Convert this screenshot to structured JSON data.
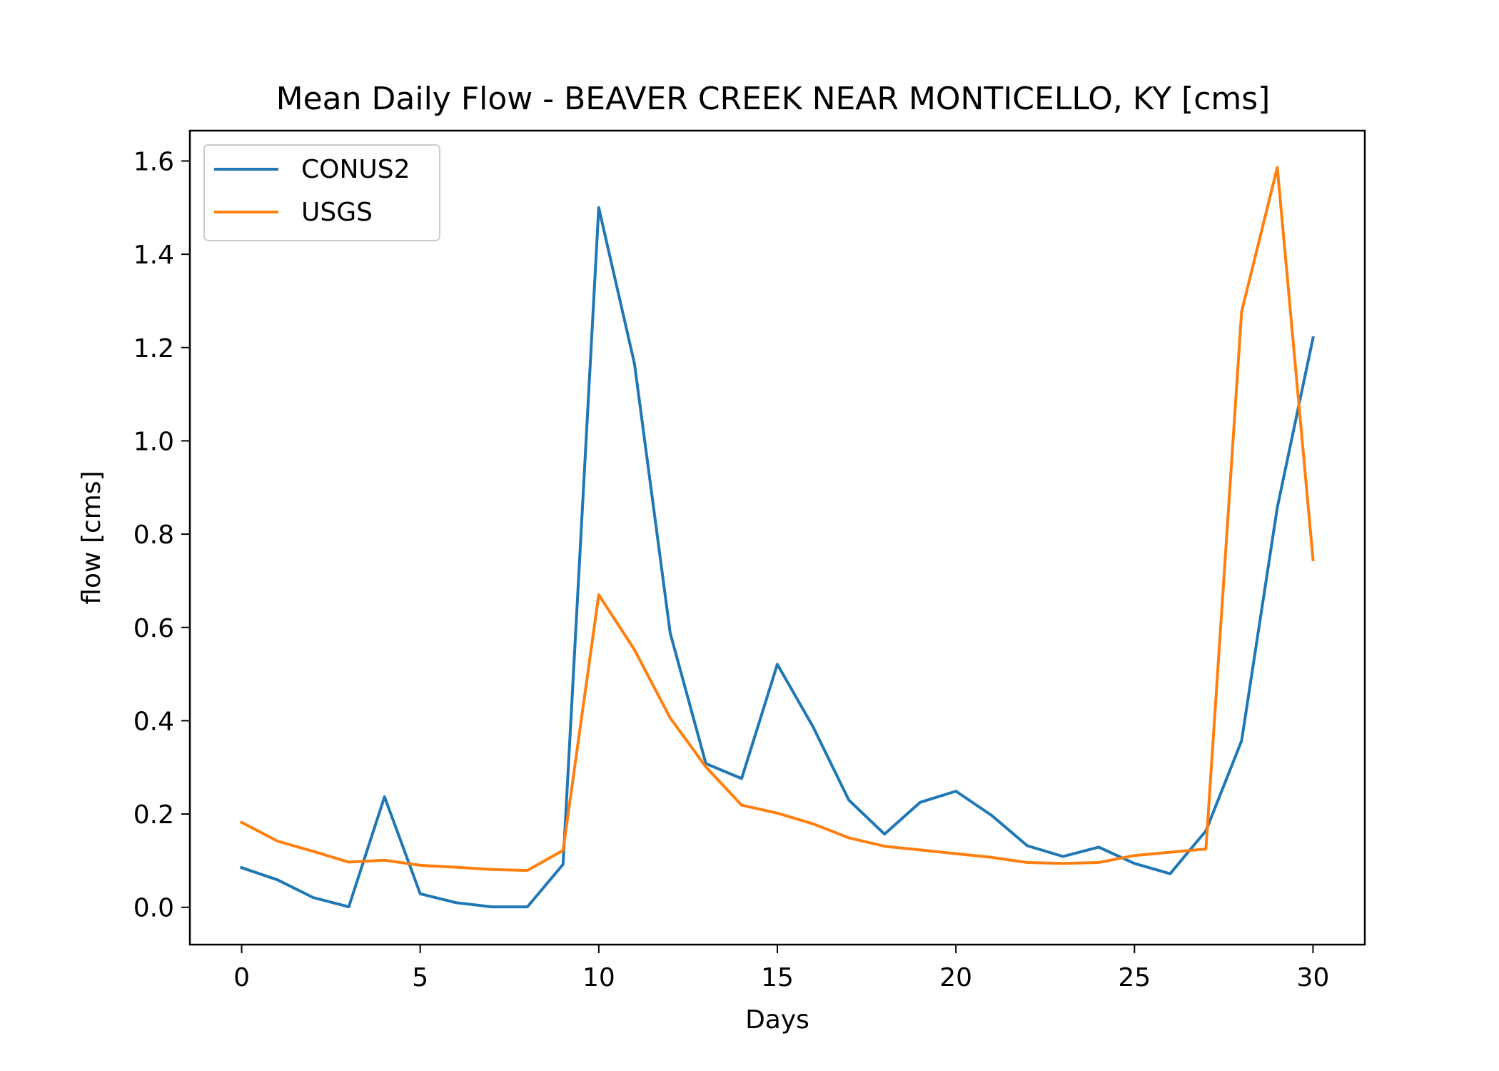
{
  "chart_data": {
    "type": "line",
    "title": "Mean Daily Flow - BEAVER CREEK NEAR MONTICELLO, KY [cms]",
    "xlabel": "Days",
    "ylabel": "flow [cms]",
    "xlim": [
      -1.45,
      31.45
    ],
    "ylim": [
      -0.08,
      1.665
    ],
    "xticks": [
      0,
      5,
      10,
      15,
      20,
      25,
      30
    ],
    "xtick_labels": [
      "0",
      "5",
      "10",
      "15",
      "20",
      "25",
      "30"
    ],
    "yticks": [
      0.0,
      0.2,
      0.4,
      0.6,
      0.8,
      1.0,
      1.2,
      1.4,
      1.6
    ],
    "ytick_labels": [
      "0.0",
      "0.2",
      "0.4",
      "0.6",
      "0.8",
      "1.0",
      "1.2",
      "1.4",
      "1.6"
    ],
    "grid": false,
    "legend_position": "top-left",
    "x": [
      0,
      1,
      2,
      3,
      4,
      5,
      6,
      7,
      8,
      9,
      10,
      11,
      12,
      13,
      14,
      15,
      16,
      17,
      18,
      19,
      20,
      21,
      22,
      23,
      24,
      25,
      26,
      27,
      28,
      29,
      30
    ],
    "series": [
      {
        "name": "CONUS2",
        "color": "#1f77b4",
        "values": [
          0.085,
          0.059,
          0.021,
          0.001,
          0.237,
          0.029,
          0.01,
          0.001,
          0.001,
          0.092,
          1.5,
          1.165,
          0.588,
          0.308,
          0.276,
          0.521,
          0.387,
          0.23,
          0.157,
          0.225,
          0.249,
          0.197,
          0.132,
          0.109,
          0.129,
          0.094,
          0.072,
          0.164,
          0.357,
          0.857,
          1.221
        ]
      },
      {
        "name": "USGS",
        "color": "#ff7f0e",
        "values": [
          0.182,
          0.142,
          0.12,
          0.097,
          0.101,
          0.09,
          0.086,
          0.081,
          0.079,
          0.122,
          0.67,
          0.552,
          0.406,
          0.301,
          0.219,
          0.202,
          0.179,
          0.149,
          0.131,
          0.123,
          0.115,
          0.107,
          0.096,
          0.094,
          0.096,
          0.111,
          0.118,
          0.125,
          1.277,
          1.586,
          0.745
        ]
      }
    ]
  }
}
